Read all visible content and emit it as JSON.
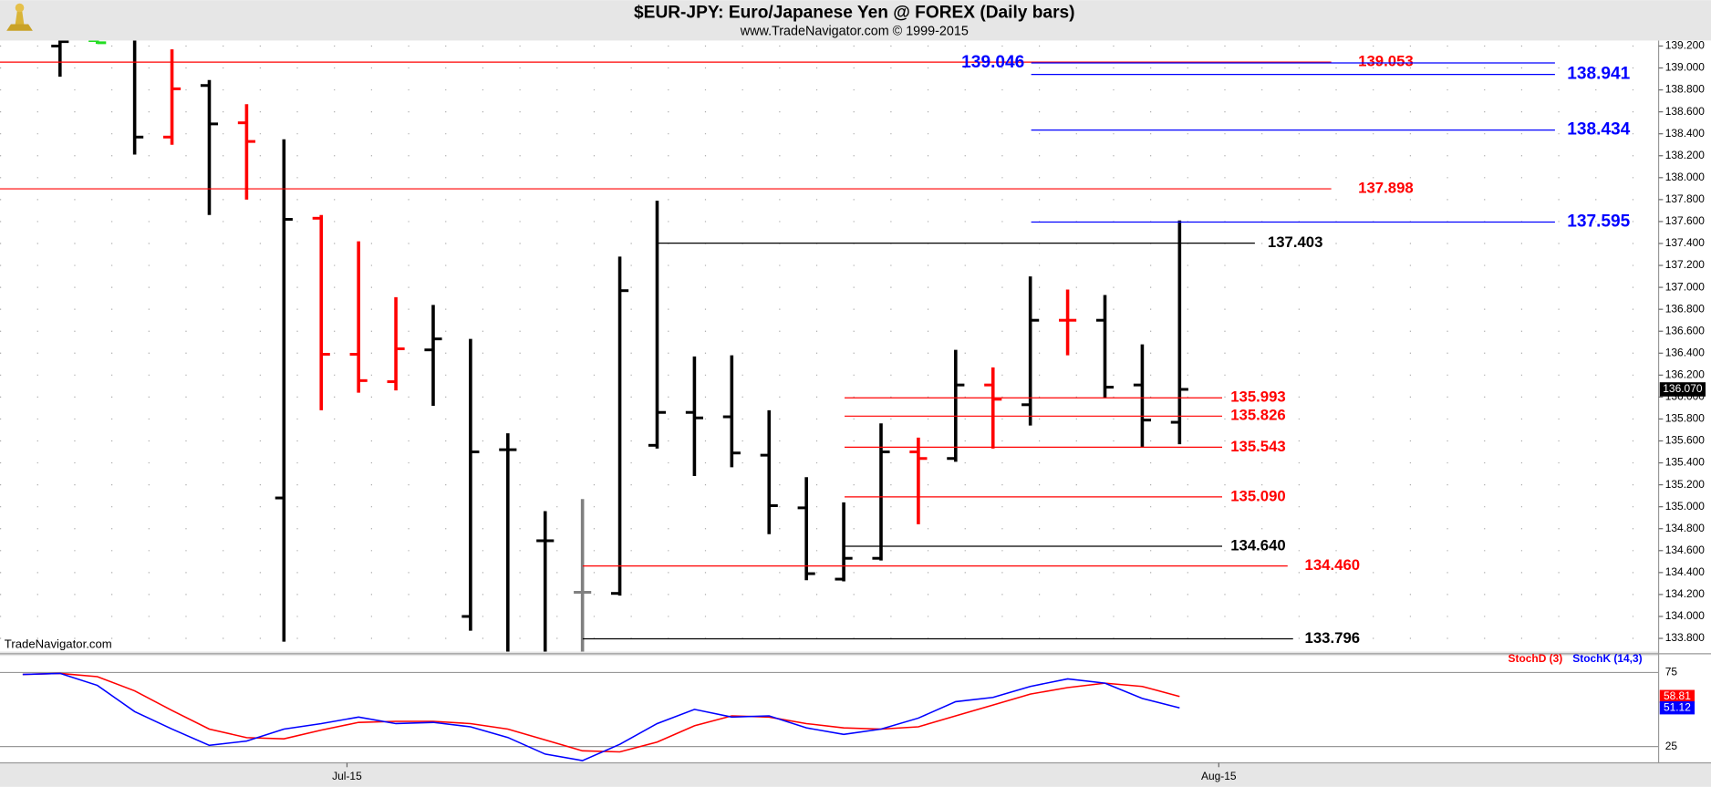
{
  "chart_data": [
    {
      "type": "ohlc",
      "title": "$EUR-JPY:  Euro/Japanese Yen @ FOREX  (Daily bars)",
      "subtitle": "www.TradeNavigator.com © 1999-2015",
      "watermark": "TradeNavigator.com",
      "categories": [
        null,
        null,
        null,
        null,
        null,
        null,
        null,
        null,
        null,
        null,
        null,
        null,
        null,
        null,
        null,
        null,
        null,
        null,
        null,
        null,
        null,
        null,
        null,
        null,
        null,
        null,
        null,
        null,
        null,
        null,
        null,
        null
      ],
      "opens": [
        null,
        139.2,
        139.25,
        139.3,
        138.37,
        138.84,
        138.5,
        135.08,
        137.63,
        136.39,
        136.14,
        136.43,
        134.0,
        135.52,
        134.69,
        134.22,
        134.21,
        135.56,
        135.86,
        135.82,
        135.47,
        134.99,
        134.34,
        134.53,
        135.5,
        135.44,
        136.11,
        135.93,
        136.7,
        136.7,
        136.11,
        135.77
      ],
      "highs": [
        null,
        139.3,
        139.3,
        139.3,
        139.17,
        138.89,
        138.67,
        138.35,
        137.66,
        137.42,
        136.91,
        136.84,
        136.53,
        135.67,
        134.96,
        135.07,
        137.28,
        137.79,
        136.37,
        136.38,
        135.88,
        135.27,
        135.04,
        135.76,
        135.63,
        136.43,
        136.27,
        137.1,
        136.98,
        136.93,
        136.48,
        137.61
      ],
      "lows": [
        null,
        138.92,
        139.22,
        138.21,
        138.3,
        137.66,
        137.8,
        133.77,
        135.88,
        136.04,
        136.06,
        135.92,
        133.87,
        133.6,
        133.6,
        133.6,
        134.19,
        135.53,
        135.28,
        135.36,
        134.75,
        134.33,
        134.32,
        134.51,
        134.84,
        135.41,
        135.53,
        135.74,
        136.38,
        135.99,
        135.54,
        135.57
      ],
      "closes": [
        null,
        139.24,
        139.23,
        138.37,
        138.81,
        138.49,
        138.33,
        137.62,
        136.39,
        136.15,
        136.44,
        136.53,
        135.5,
        135.52,
        134.69,
        134.22,
        136.97,
        135.86,
        135.81,
        135.49,
        135.01,
        134.39,
        134.53,
        135.5,
        135.44,
        136.11,
        135.98,
        136.7,
        136.7,
        136.09,
        135.79,
        136.07
      ],
      "colors": [
        null,
        "#000000",
        "#22dd22",
        "#000000",
        "#ff0000",
        "#000000",
        "#ff0000",
        "#000000",
        "#ff0000",
        "#ff0000",
        "#ff0000",
        "#000000",
        "#000000",
        "#000000",
        "#000000",
        "#808080",
        "#000000",
        "#000000",
        "#000000",
        "#000000",
        "#000000",
        "#000000",
        "#000000",
        "#000000",
        "#ff0000",
        "#000000",
        "#ff0000",
        "#000000",
        "#ff0000",
        "#000000",
        "#000000",
        "#000000"
      ],
      "last_label": "136.070",
      "levels": [
        {
          "value": 139.053,
          "color": "#ff0000"
        },
        {
          "value": 137.898,
          "color": "#ff0000"
        },
        {
          "value": 135.993,
          "color": "#ff0000"
        },
        {
          "value": 135.826,
          "color": "#ff0000"
        },
        {
          "value": 135.543,
          "color": "#ff0000"
        },
        {
          "value": 135.09,
          "label": "135.090",
          "color": "#ff0000"
        },
        {
          "value": 134.46,
          "label": "134.460",
          "color": "#ff0000"
        },
        {
          "value": 137.403,
          "color": "#000000"
        },
        {
          "value": 134.64,
          "label": "134.640",
          "color": "#000000"
        },
        {
          "value": 133.796,
          "color": "#000000"
        },
        {
          "value": 139.046,
          "color": "#0000ff"
        },
        {
          "value": 138.941,
          "color": "#0000ff"
        },
        {
          "value": 138.434,
          "color": "#0000ff"
        },
        {
          "value": 137.595,
          "color": "#0000ff"
        }
      ],
      "ylim": [
        133.68,
        139.25
      ],
      "yticks": [
        {
          "value": 133.8,
          "label": "133.800"
        },
        {
          "value": 134.0,
          "label": "134.000"
        },
        {
          "value": 134.2,
          "label": "134.200"
        },
        {
          "value": 134.4,
          "label": "134.400"
        },
        {
          "value": 134.6,
          "label": "134.600"
        },
        {
          "value": 134.8,
          "label": "134.800"
        },
        {
          "value": 135.0,
          "label": "135.000"
        },
        {
          "value": 135.2,
          "label": "135.200"
        },
        {
          "value": 135.4,
          "label": "135.400"
        },
        {
          "value": 135.6,
          "label": "135.600"
        },
        {
          "value": 135.8,
          "label": "135.800"
        },
        {
          "value": 136.0,
          "label": "136.000"
        },
        {
          "value": 136.2,
          "label": "136.200"
        },
        {
          "value": 136.4,
          "label": "136.400"
        },
        {
          "value": 136.6,
          "label": "136.600"
        },
        {
          "value": 136.8,
          "label": "136.800"
        },
        {
          "value": 137.0,
          "label": "137.000"
        },
        {
          "value": 137.2,
          "label": "137.200"
        },
        {
          "value": 137.4,
          "label": "137.400"
        },
        {
          "value": 137.6,
          "label": "137.600"
        },
        {
          "value": 137.8,
          "label": "137.800"
        },
        {
          "value": 138.0,
          "label": "138.000"
        },
        {
          "value": 138.2,
          "label": "138.200"
        },
        {
          "value": 138.4,
          "label": "138.400"
        },
        {
          "value": 138.6,
          "label": "138.600"
        },
        {
          "value": 138.8,
          "label": "138.800"
        },
        {
          "value": 139.0,
          "label": "139.000"
        },
        {
          "value": 139.2,
          "label": "139.200"
        }
      ],
      "grid": true
    },
    {
      "type": "line",
      "series": [
        {
          "name": "StochD (3)",
          "color": "#ff0000",
          "last_label": "58.81",
          "values": [
            73.7,
            74.4,
            72.2,
            62.6,
            49.4,
            36.8,
            31.0,
            30.2,
            36.1,
            41.3,
            42.0,
            42.0,
            40.5,
            36.8,
            29.5,
            22.1,
            21.4,
            28.0,
            39.0,
            45.7,
            44.9,
            40.5,
            37.6,
            36.8,
            38.3,
            45.7,
            53.0,
            60.4,
            64.8,
            67.8,
            65.6,
            58.81
          ]
        },
        {
          "name": "StochK (14,3)",
          "color": "#0000ff",
          "last_label": "51.12",
          "values": [
            73.7,
            74.4,
            66.3,
            48.6,
            36.8,
            25.8,
            28.7,
            36.8,
            40.5,
            44.9,
            40.5,
            41.3,
            38.3,
            31.1,
            19.9,
            15.5,
            26.5,
            40.5,
            50.1,
            44.9,
            45.7,
            37.6,
            33.2,
            36.8,
            44.2,
            55.3,
            58.2,
            65.6,
            70.7,
            67.8,
            57.5,
            51.12
          ]
        }
      ],
      "ylim": [
        14,
        84
      ],
      "yticks": [
        25,
        75
      ],
      "xticks": [
        {
          "value": 8.69,
          "label": "Jul-15"
        },
        {
          "value": 32.05,
          "label": "Aug-15"
        }
      ]
    }
  ]
}
